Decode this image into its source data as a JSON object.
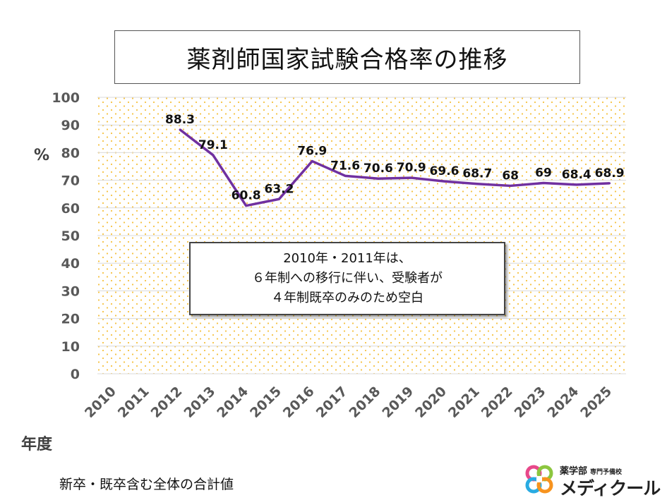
{
  "header": {
    "title": "薬剤師国家試験合格率の推移"
  },
  "chart_data": {
    "type": "line",
    "title": "薬剤師国家試験合格率の推移",
    "xlabel": "年度",
    "ylabel": "%",
    "ylim": [
      0,
      100
    ],
    "yticks": [
      0,
      10,
      20,
      30,
      40,
      50,
      60,
      70,
      80,
      90,
      100
    ],
    "categories": [
      "2010",
      "2011",
      "2012",
      "2013",
      "2014",
      "2015",
      "2016",
      "2017",
      "2018",
      "2019",
      "2020",
      "2021",
      "2022",
      "2023",
      "2024",
      "2025"
    ],
    "series": [
      {
        "name": "合格率",
        "values": [
          null,
          null,
          88.3,
          79.1,
          60.8,
          63.2,
          76.9,
          71.6,
          70.6,
          70.9,
          69.6,
          68.7,
          68,
          69,
          68.4,
          68.9
        ]
      }
    ],
    "data_labels": [
      "",
      "",
      "88.3",
      "79.1",
      "60.8",
      "63.2",
      "76.9",
      "71.6",
      "70.6",
      "70.9",
      "69.6",
      "68.7",
      "68",
      "69",
      "68.4",
      "68.9"
    ],
    "grid": true
  },
  "note": {
    "lines": [
      "2010年・2011年は、",
      "６年制への移行に伴い、受験者が",
      "４年制既卒のみのため空白"
    ]
  },
  "footnote": "新卒・既卒含む全体の合計値",
  "logo": {
    "sub": "薬学部",
    "sub_small": "専門予備校",
    "main": "メディクール"
  },
  "colors": {
    "line": "#7030a0",
    "dots": "#f5c242",
    "grid": "#d9d9d9",
    "axis_text": "#595959"
  }
}
